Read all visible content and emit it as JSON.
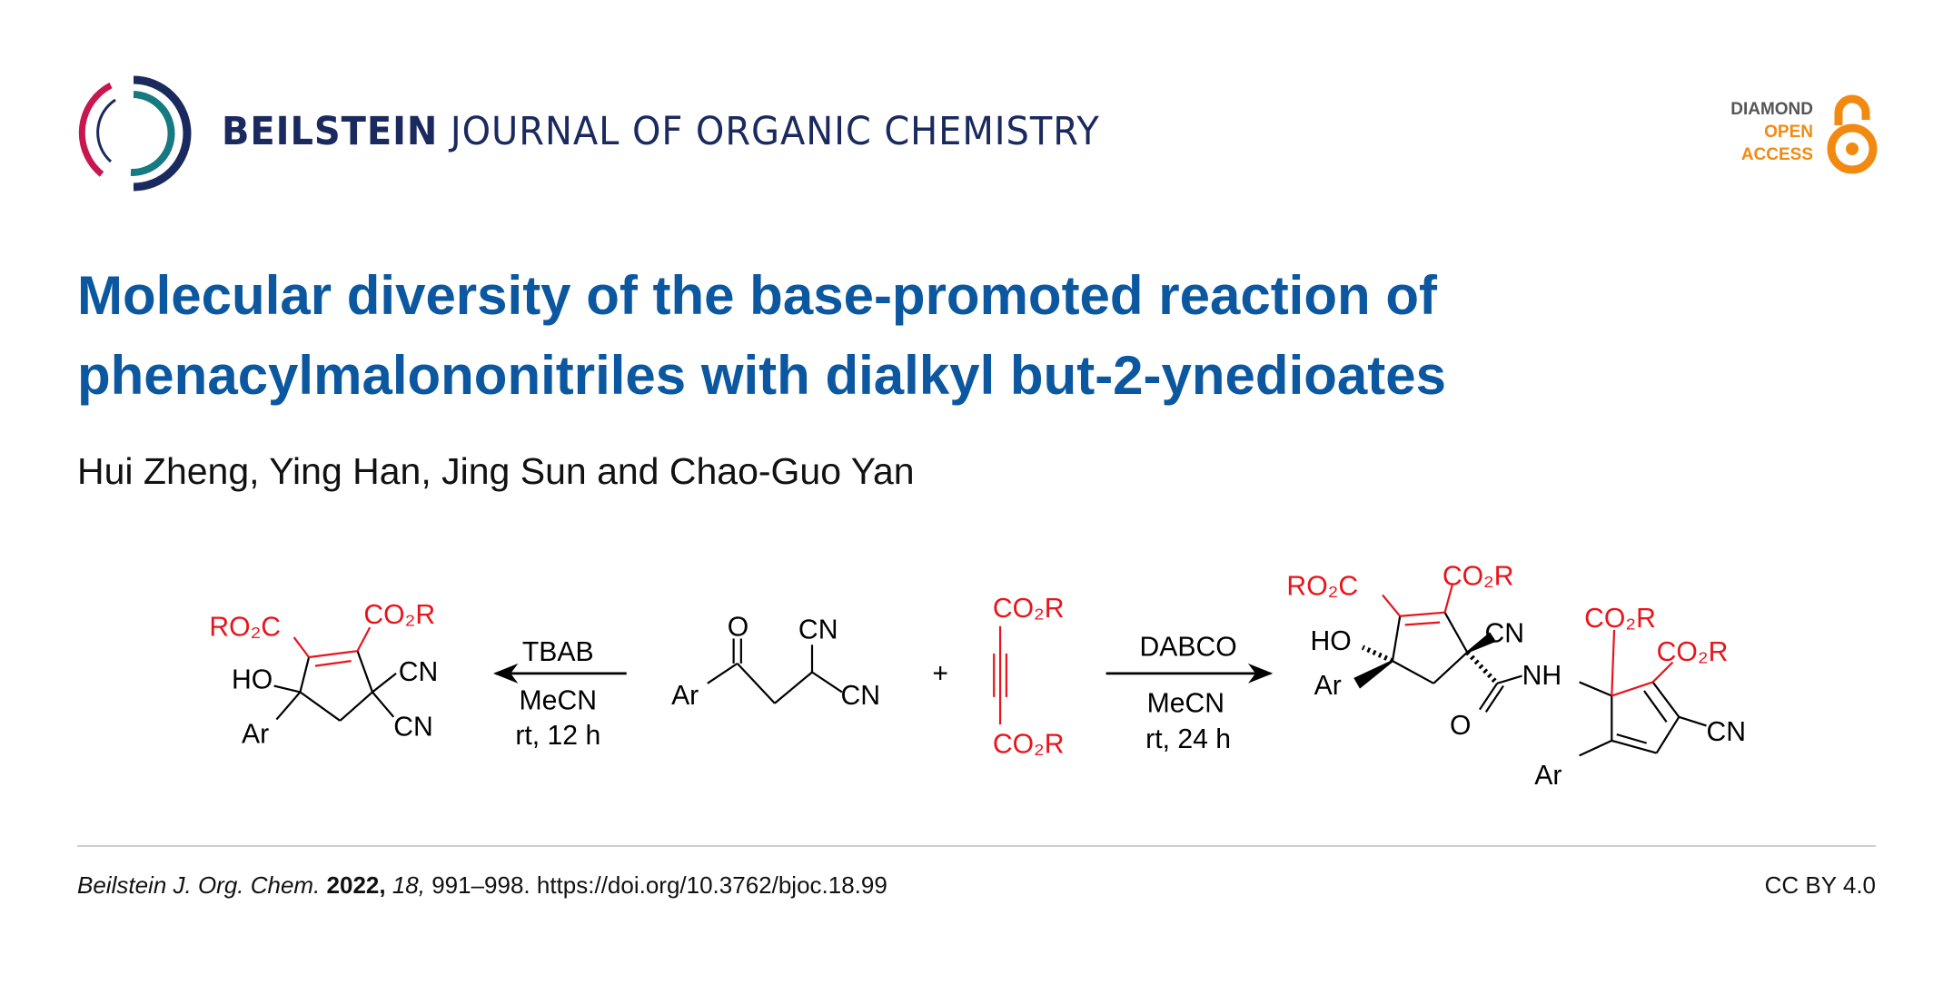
{
  "header": {
    "journal_bold": "BEILSTEIN",
    "journal_rest": " JOURNAL OF ORGANIC CHEMISTRY",
    "badge": {
      "line1": "DIAMOND",
      "line2": "OPEN",
      "line3": "ACCESS"
    }
  },
  "article": {
    "title": "Molecular diversity of the base-promoted reaction of phenacylmalononitriles with dialkyl but-2-ynedioates",
    "authors": "Hui Zheng, Ying Han, Jing Sun and Chao-Guo Yan"
  },
  "scheme": {
    "left_product": {
      "ro2c": "RO₂C",
      "co2r": "CO₂R",
      "ho": "HO",
      "ar": "Ar",
      "cn1": "CN",
      "cn2": "CN"
    },
    "left_arrow": {
      "reagent": "TBAB",
      "solvent": "MeCN",
      "conditions": "rt, 12 h"
    },
    "reactant1": {
      "o": "O",
      "ar": "Ar",
      "cn1": "CN",
      "cn2": "CN"
    },
    "plus": "+",
    "reactant2": {
      "top": "CO₂R",
      "bottom": "CO₂R"
    },
    "right_arrow": {
      "reagent": "DABCO",
      "solvent": "MeCN",
      "conditions": "rt, 24 h"
    },
    "right_product": {
      "ro2c": "RO₂C",
      "co2r1": "CO₂R",
      "ho": "HO",
      "ar1": "Ar",
      "cn1": "CN",
      "o": "O",
      "nh": "NH",
      "co2r2": "CO₂R",
      "co2r3": "CO₂R",
      "cn2": "CN",
      "ar2": "Ar"
    }
  },
  "footer": {
    "journal": "Beilstein J. Org. Chem.",
    "year": " 2022,",
    "volume": " 18,",
    "pages_doi": " 991–998. https://doi.org/10.3762/bjoc.18.99",
    "license": "CC BY 4.0"
  },
  "colors": {
    "title": "#0b57a0",
    "journal": "#1b2a5e",
    "accent_red": "#e8141b",
    "oa_orange": "#f28a12",
    "logo_crimson": "#c8174f",
    "logo_teal": "#167a80"
  }
}
